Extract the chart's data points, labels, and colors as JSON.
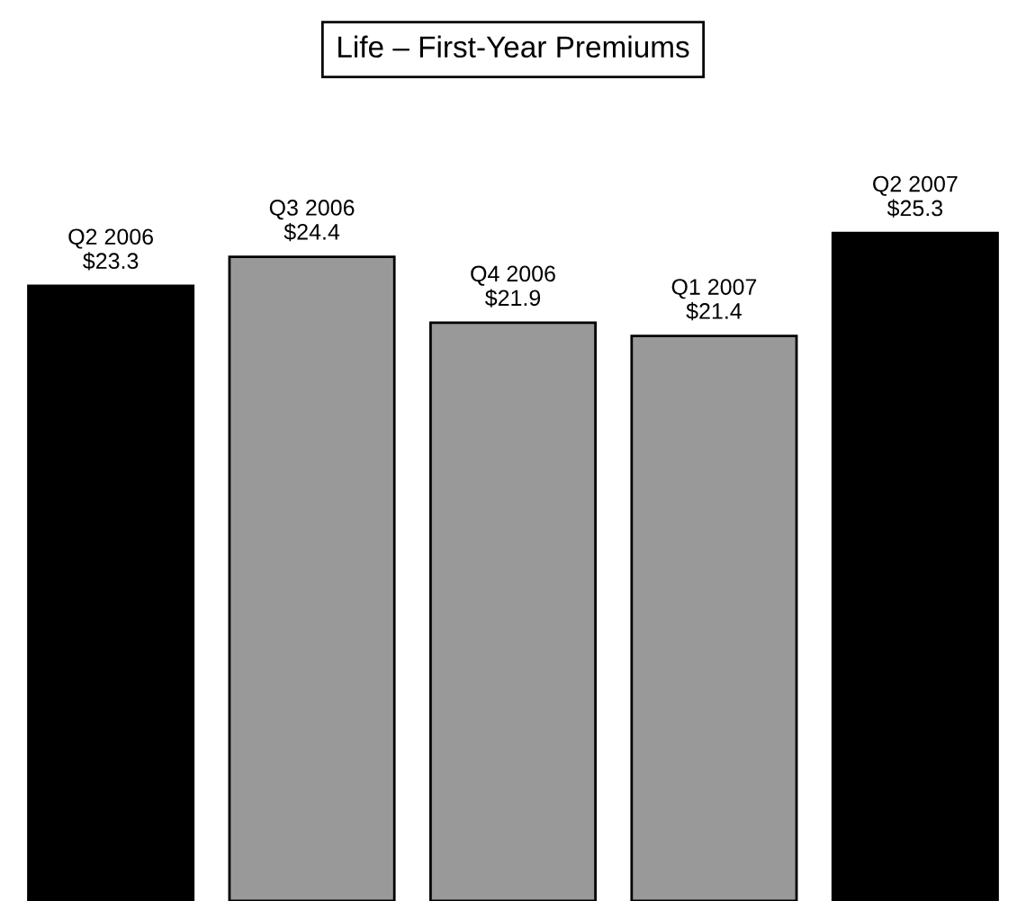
{
  "chart_data": {
    "type": "bar",
    "title": "Life – First-Year Premiums",
    "categories": [
      "Q2 2006",
      "Q3 2006",
      "Q4 2006",
      "Q1 2007",
      "Q2 2007"
    ],
    "values": [
      23.3,
      24.4,
      21.9,
      21.4,
      25.3
    ],
    "value_labels": [
      "$23.3",
      "$24.4",
      "$21.9",
      "$21.4",
      "$25.3"
    ],
    "colors": [
      "#000000",
      "#999999",
      "#999999",
      "#999999",
      "#000000"
    ]
  }
}
